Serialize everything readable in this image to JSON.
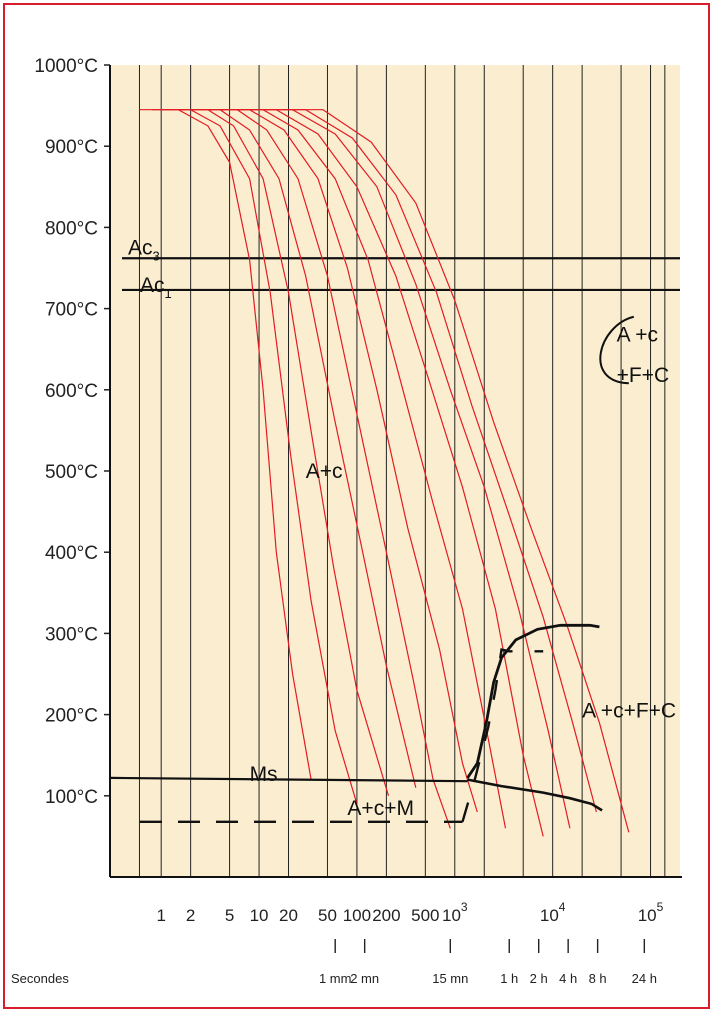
{
  "chart_data": {
    "type": "line",
    "title": "",
    "xlabel": "Secondes",
    "ylabel": "",
    "x_scale": "log",
    "xlim": [
      0.3,
      200000
    ],
    "ylim": [
      0,
      1000
    ],
    "grid": true,
    "colors": {
      "background": "#fbeed0",
      "frame": "#d81e2c",
      "cooling_curves": "#e31b23",
      "lines": "#111111"
    },
    "y_ticks": [
      {
        "value": 100,
        "label": "100°C"
      },
      {
        "value": 200,
        "label": "200°C"
      },
      {
        "value": 300,
        "label": "300°C"
      },
      {
        "value": 400,
        "label": "400°C"
      },
      {
        "value": 500,
        "label": "500°C"
      },
      {
        "value": 600,
        "label": "600°C"
      },
      {
        "value": 700,
        "label": "700°C"
      },
      {
        "value": 800,
        "label": "800°C"
      },
      {
        "value": 900,
        "label": "900°C"
      },
      {
        "value": 1000,
        "label": "1000°C"
      }
    ],
    "x_ticks": [
      {
        "value": 1,
        "label": "1"
      },
      {
        "value": 2,
        "label": "2"
      },
      {
        "value": 5,
        "label": "5"
      },
      {
        "value": 10,
        "label": "10"
      },
      {
        "value": 20,
        "label": "20"
      },
      {
        "value": 50,
        "label": "50"
      },
      {
        "value": 100,
        "label": "100"
      },
      {
        "value": 200,
        "label": "200"
      },
      {
        "value": 500,
        "label": "500"
      },
      {
        "value": 1000,
        "label": "10",
        "exp": "3"
      },
      {
        "value": 10000,
        "label": "10",
        "exp": "4"
      },
      {
        "value": 100000,
        "label": "10",
        "exp": "5"
      }
    ],
    "time_ticks": [
      {
        "value": 60,
        "label": "1 mm"
      },
      {
        "value": 120,
        "label": "2 mn"
      },
      {
        "value": 900,
        "label": "15 mn"
      },
      {
        "value": 3600,
        "label": "1 h"
      },
      {
        "value": 7200,
        "label": "2 h"
      },
      {
        "value": 14400,
        "label": "4 h"
      },
      {
        "value": 28800,
        "label": "8 h"
      },
      {
        "value": 86400,
        "label": "24 h"
      }
    ],
    "grid_x": [
      0.6,
      1,
      2,
      5,
      10,
      20,
      50,
      100,
      200,
      500,
      1000,
      2000,
      5000,
      10000,
      20000,
      50000,
      100000,
      140000
    ],
    "cooling_curves": [
      [
        [
          0.6,
          945
        ],
        [
          1.5,
          945
        ],
        [
          3,
          925
        ],
        [
          5,
          880
        ],
        [
          8,
          760
        ],
        [
          11,
          600
        ],
        [
          15,
          400
        ],
        [
          22,
          250
        ],
        [
          34,
          120
        ]
      ],
      [
        [
          0.8,
          945
        ],
        [
          2,
          945
        ],
        [
          4,
          925
        ],
        [
          8,
          860
        ],
        [
          13,
          720
        ],
        [
          21,
          520
        ],
        [
          34,
          340
        ],
        [
          60,
          180
        ],
        [
          100,
          90
        ]
      ],
      [
        [
          1,
          945
        ],
        [
          3,
          945
        ],
        [
          5.5,
          925
        ],
        [
          11,
          860
        ],
        [
          20,
          720
        ],
        [
          35,
          540
        ],
        [
          58,
          380
        ],
        [
          100,
          230
        ],
        [
          210,
          100
        ]
      ],
      [
        [
          1.5,
          945
        ],
        [
          4,
          945
        ],
        [
          8,
          920
        ],
        [
          16,
          860
        ],
        [
          30,
          740
        ],
        [
          60,
          560
        ],
        [
          110,
          410
        ],
        [
          200,
          260
        ],
        [
          400,
          110
        ]
      ],
      [
        [
          2,
          945
        ],
        [
          6,
          945
        ],
        [
          12,
          920
        ],
        [
          25,
          860
        ],
        [
          50,
          740
        ],
        [
          100,
          570
        ],
        [
          200,
          400
        ],
        [
          380,
          240
        ],
        [
          600,
          120
        ],
        [
          900,
          60
        ]
      ],
      [
        [
          3,
          945
        ],
        [
          8,
          945
        ],
        [
          18,
          920
        ],
        [
          40,
          860
        ],
        [
          80,
          750
        ],
        [
          160,
          600
        ],
        [
          330,
          430
        ],
        [
          700,
          280
        ],
        [
          1200,
          140
        ],
        [
          1700,
          80
        ]
      ],
      [
        [
          4,
          945
        ],
        [
          11,
          945
        ],
        [
          25,
          920
        ],
        [
          60,
          860
        ],
        [
          130,
          760
        ],
        [
          280,
          610
        ],
        [
          600,
          460
        ],
        [
          1200,
          330
        ],
        [
          2200,
          170
        ],
        [
          3300,
          60
        ]
      ],
      [
        [
          6,
          945
        ],
        [
          15,
          945
        ],
        [
          40,
          915
        ],
        [
          100,
          850
        ],
        [
          250,
          740
        ],
        [
          550,
          610
        ],
        [
          1200,
          480
        ],
        [
          2600,
          330
        ],
        [
          5000,
          150
        ],
        [
          8000,
          50
        ]
      ],
      [
        [
          8,
          945
        ],
        [
          22,
          945
        ],
        [
          60,
          915
        ],
        [
          160,
          850
        ],
        [
          400,
          730
        ],
        [
          900,
          600
        ],
        [
          2000,
          480
        ],
        [
          4500,
          330
        ],
        [
          9000,
          180
        ],
        [
          15000,
          60
        ]
      ],
      [
        [
          12,
          945
        ],
        [
          30,
          945
        ],
        [
          90,
          910
        ],
        [
          250,
          840
        ],
        [
          650,
          720
        ],
        [
          1500,
          580
        ],
        [
          3500,
          450
        ],
        [
          8000,
          320
        ],
        [
          16000,
          190
        ],
        [
          28000,
          80
        ]
      ],
      [
        [
          18,
          945
        ],
        [
          45,
          945
        ],
        [
          140,
          905
        ],
        [
          400,
          830
        ],
        [
          1000,
          710
        ],
        [
          2500,
          560
        ],
        [
          6000,
          430
        ],
        [
          14000,
          310
        ],
        [
          30000,
          190
        ],
        [
          60000,
          55
        ]
      ]
    ],
    "lines": {
      "Ac3": {
        "label": "Ac",
        "sub": "3",
        "value": 762
      },
      "Ac1": {
        "label": "Ac",
        "sub": "1",
        "value": 723
      },
      "Ms": {
        "label": "Ms",
        "start": 0.3,
        "value": 122
      },
      "Mf_dashed": {
        "value": 68
      },
      "transformation_curve": [
        [
          1350,
          122
        ],
        [
          1700,
          140
        ],
        [
          2100,
          190
        ],
        [
          2500,
          240
        ],
        [
          3000,
          270
        ],
        [
          4200,
          292
        ],
        [
          7000,
          305
        ],
        [
          12000,
          310
        ],
        [
          24000,
          310
        ],
        [
          30000,
          308
        ]
      ],
      "Ms_descending": [
        [
          1350,
          120
        ],
        [
          3000,
          112
        ],
        [
          8000,
          104
        ],
        [
          15000,
          97
        ],
        [
          25000,
          90
        ],
        [
          32000,
          82
        ]
      ],
      "dashed_vertical": [
        [
          1200,
          68
        ],
        [
          1600,
          120
        ],
        [
          2200,
          185
        ],
        [
          2600,
          230
        ],
        [
          3000,
          280
        ],
        [
          3600,
          278
        ],
        [
          8000,
          278
        ]
      ]
    },
    "annotations": [
      {
        "text": "A+c",
        "x": 30,
        "y": 500
      },
      {
        "text": "A+c+M",
        "x": 80,
        "y": 85
      },
      {
        "text": "A +c+F+C",
        "x": 20000,
        "y": 205
      },
      {
        "text": "A +c",
        "x": 45000,
        "y": 668
      },
      {
        "text": "+F+C",
        "x": 45000,
        "y": 618
      }
    ]
  }
}
